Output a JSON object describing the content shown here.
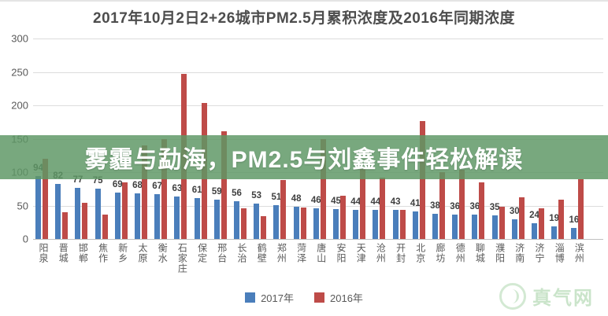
{
  "title": "2017年10月2日2+26城市PM2.5月累积浓度及2016年同期浓度",
  "overlay": {
    "text": "雾霾与勐海，PM2.5与刘鑫事件轻松解读"
  },
  "watermark": {
    "text": "真气网"
  },
  "legend": [
    {
      "label": "2017年",
      "color": "#4a7ebb"
    },
    {
      "label": "2016年",
      "color": "#be4b48"
    }
  ],
  "chart_data": {
    "type": "bar",
    "title": "2017年10月2日2+26城市PM2.5月累积浓度及2016年同期浓度",
    "categories": [
      "阳泉",
      "晋城",
      "邯郸",
      "焦作",
      "新乡",
      "太原",
      "衡水",
      "石家庄",
      "保定",
      "邢台",
      "长治",
      "鹤壁",
      "郑州",
      "菏泽",
      "唐山",
      "安阳",
      "天津",
      "沧州",
      "开封",
      "北京",
      "廊坊",
      "德州",
      "聊城",
      "濮阳",
      "济南",
      "济宁",
      "淄博",
      "滨州"
    ],
    "series": [
      {
        "name": "2017年",
        "color": "#4a7ebb",
        "data_labels": true,
        "values": [
          94,
          82,
          77,
          75,
          69,
          68,
          67,
          63,
          61,
          59,
          56,
          53,
          51,
          48,
          46,
          45,
          44,
          44,
          43,
          41,
          38,
          36,
          36,
          35,
          30,
          24,
          19,
          16
        ]
      },
      {
        "name": "2016年",
        "color": "#be4b48",
        "data_labels": false,
        "values": [
          120,
          40,
          54,
          36,
          85,
          140,
          150,
          247,
          204,
          161,
          46,
          34,
          88,
          47,
          149,
          65,
          105,
          92,
          43,
          177,
          100,
          103,
          85,
          48,
          62,
          46,
          59,
          89
        ]
      }
    ],
    "xlabel": "",
    "ylabel": "",
    "ylim": [
      0,
      300
    ],
    "yticks": [
      0,
      50,
      100,
      150,
      200,
      250,
      300
    ],
    "grid": true,
    "legend_position": "bottom"
  }
}
